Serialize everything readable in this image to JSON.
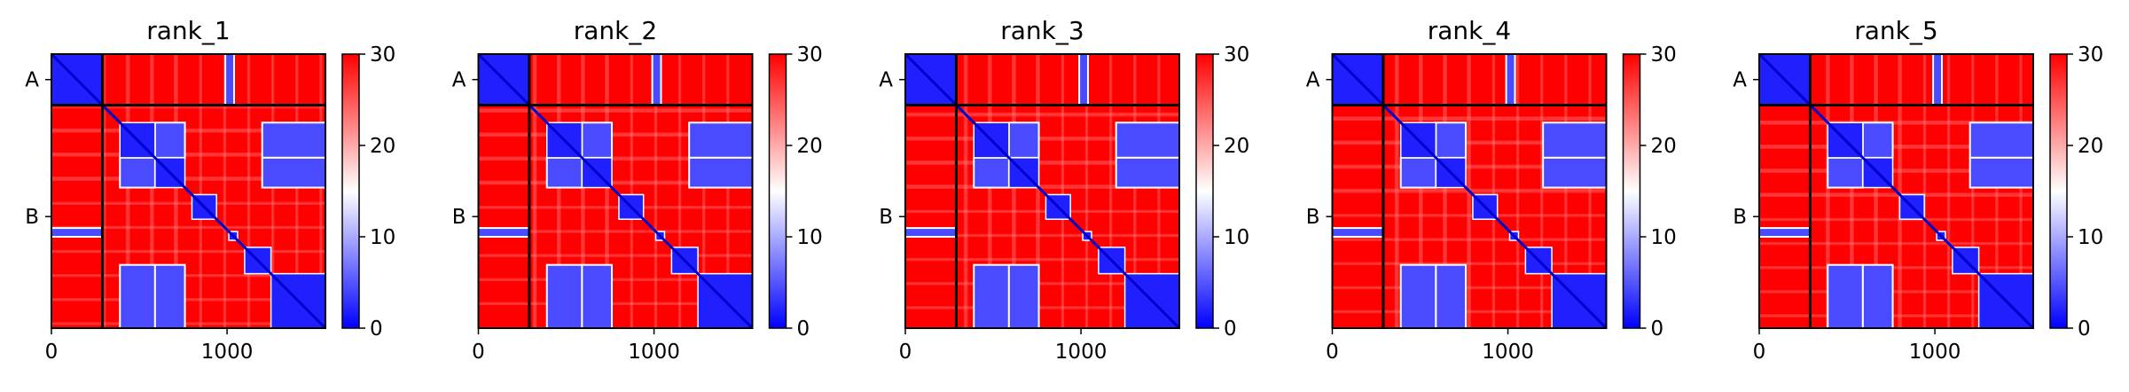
{
  "figure_title": "",
  "colormap": {
    "min_color": "#0000ff",
    "mid_color": "#ffffff",
    "max_color": "#ff0000"
  },
  "chart_data": [
    {
      "type": "heatmap",
      "title": "rank_1",
      "xlabel": "",
      "ylabel": "",
      "xlim": [
        0,
        1560
      ],
      "xticks": [
        0,
        1000
      ],
      "chain_boundary": 290,
      "chains": [
        {
          "label": "A",
          "start": 0,
          "end": 290
        },
        {
          "label": "B",
          "start": 290,
          "end": 1560
        }
      ],
      "colorbar": {
        "min": 0,
        "max": 30,
        "ticks": [
          0,
          10,
          20,
          30
        ]
      },
      "blocks": [
        [
          0,
          290
        ],
        [
          390,
          590
        ],
        [
          590,
          760
        ],
        [
          800,
          940
        ],
        [
          1010,
          1060
        ],
        [
          1100,
          1250
        ],
        [
          1250,
          1560
        ]
      ],
      "contacts": [
        [
          [
            390,
            590
          ],
          [
            1200,
            1560
          ]
        ],
        [
          [
            590,
            760
          ],
          [
            1200,
            1560
          ]
        ],
        [
          [
            0,
            290
          ],
          [
            990,
            1040
          ]
        ],
        [
          [
            390,
            590
          ],
          [
            590,
            760
          ]
        ]
      ]
    },
    {
      "type": "heatmap",
      "title": "rank_2",
      "xlabel": "",
      "ylabel": "",
      "xlim": [
        0,
        1560
      ],
      "xticks": [
        0,
        1000
      ],
      "chain_boundary": 290,
      "chains": [
        {
          "label": "A",
          "start": 0,
          "end": 290
        },
        {
          "label": "B",
          "start": 290,
          "end": 1560
        }
      ],
      "colorbar": {
        "min": 0,
        "max": 30,
        "ticks": [
          0,
          10,
          20,
          30
        ]
      },
      "blocks": [
        [
          0,
          290
        ],
        [
          390,
          590
        ],
        [
          590,
          760
        ],
        [
          800,
          940
        ],
        [
          1010,
          1060
        ],
        [
          1100,
          1250
        ],
        [
          1250,
          1560
        ]
      ],
      "contacts": [
        [
          [
            390,
            590
          ],
          [
            1200,
            1560
          ]
        ],
        [
          [
            590,
            760
          ],
          [
            1200,
            1560
          ]
        ],
        [
          [
            0,
            290
          ],
          [
            990,
            1040
          ]
        ],
        [
          [
            390,
            590
          ],
          [
            590,
            760
          ]
        ]
      ]
    },
    {
      "type": "heatmap",
      "title": "rank_3",
      "xlabel": "",
      "ylabel": "",
      "xlim": [
        0,
        1560
      ],
      "xticks": [
        0,
        1000
      ],
      "chain_boundary": 290,
      "chains": [
        {
          "label": "A",
          "start": 0,
          "end": 290
        },
        {
          "label": "B",
          "start": 290,
          "end": 1560
        }
      ],
      "colorbar": {
        "min": 0,
        "max": 30,
        "ticks": [
          0,
          10,
          20,
          30
        ]
      },
      "blocks": [
        [
          0,
          290
        ],
        [
          390,
          590
        ],
        [
          590,
          760
        ],
        [
          800,
          940
        ],
        [
          1010,
          1060
        ],
        [
          1100,
          1250
        ],
        [
          1250,
          1560
        ]
      ],
      "contacts": [
        [
          [
            390,
            590
          ],
          [
            1200,
            1560
          ]
        ],
        [
          [
            590,
            760
          ],
          [
            1200,
            1560
          ]
        ],
        [
          [
            0,
            290
          ],
          [
            990,
            1040
          ]
        ],
        [
          [
            390,
            590
          ],
          [
            590,
            760
          ]
        ]
      ]
    },
    {
      "type": "heatmap",
      "title": "rank_4",
      "xlabel": "",
      "ylabel": "",
      "xlim": [
        0,
        1560
      ],
      "xticks": [
        0,
        1000
      ],
      "chain_boundary": 290,
      "chains": [
        {
          "label": "A",
          "start": 0,
          "end": 290
        },
        {
          "label": "B",
          "start": 290,
          "end": 1560
        }
      ],
      "colorbar": {
        "min": 0,
        "max": 30,
        "ticks": [
          0,
          10,
          20,
          30
        ]
      },
      "blocks": [
        [
          0,
          290
        ],
        [
          390,
          590
        ],
        [
          590,
          760
        ],
        [
          800,
          940
        ],
        [
          1010,
          1060
        ],
        [
          1100,
          1250
        ],
        [
          1250,
          1560
        ]
      ],
      "contacts": [
        [
          [
            390,
            590
          ],
          [
            1200,
            1560
          ]
        ],
        [
          [
            590,
            760
          ],
          [
            1200,
            1560
          ]
        ],
        [
          [
            0,
            290
          ],
          [
            990,
            1040
          ]
        ],
        [
          [
            390,
            590
          ],
          [
            590,
            760
          ]
        ]
      ]
    },
    {
      "type": "heatmap",
      "title": "rank_5",
      "xlabel": "",
      "ylabel": "",
      "xlim": [
        0,
        1560
      ],
      "xticks": [
        0,
        1000
      ],
      "chain_boundary": 290,
      "chains": [
        {
          "label": "A",
          "start": 0,
          "end": 290
        },
        {
          "label": "B",
          "start": 290,
          "end": 1560
        }
      ],
      "colorbar": {
        "min": 0,
        "max": 30,
        "ticks": [
          0,
          10,
          20,
          30
        ]
      },
      "blocks": [
        [
          0,
          290
        ],
        [
          390,
          590
        ],
        [
          590,
          760
        ],
        [
          800,
          940
        ],
        [
          1010,
          1060
        ],
        [
          1100,
          1250
        ],
        [
          1250,
          1560
        ]
      ],
      "contacts": [
        [
          [
            390,
            590
          ],
          [
            1200,
            1560
          ]
        ],
        [
          [
            590,
            760
          ],
          [
            1200,
            1560
          ]
        ],
        [
          [
            0,
            290
          ],
          [
            990,
            1040
          ]
        ],
        [
          [
            390,
            590
          ],
          [
            590,
            760
          ]
        ]
      ]
    }
  ]
}
